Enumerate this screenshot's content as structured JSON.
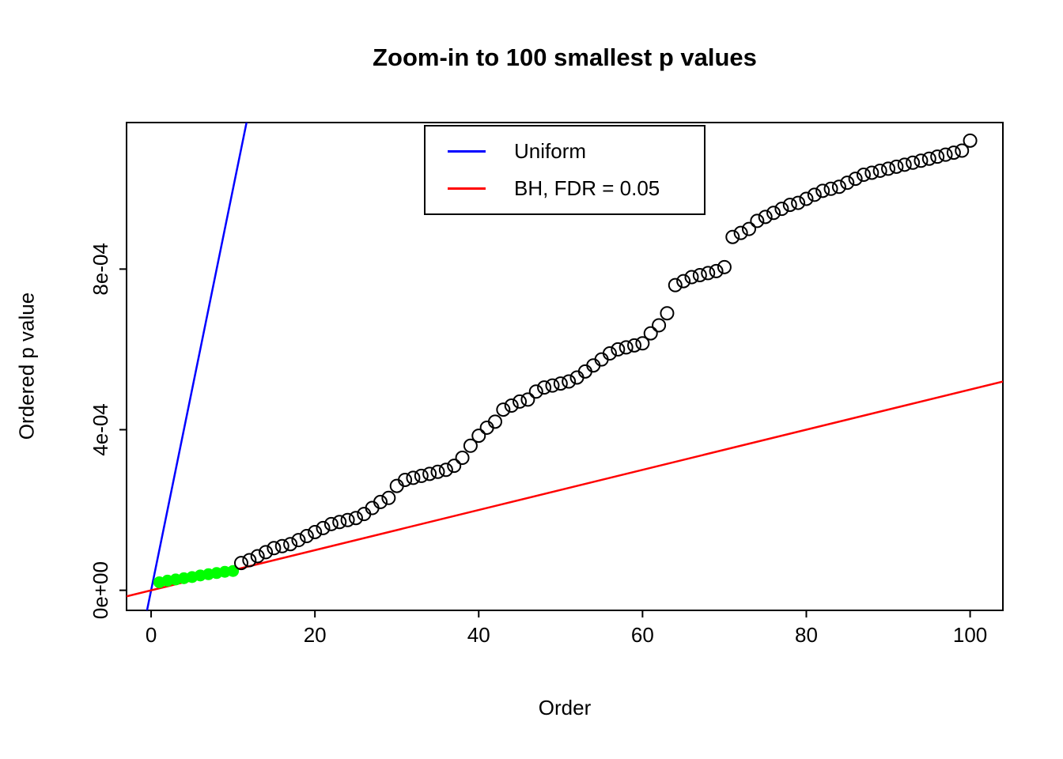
{
  "chart_data": {
    "type": "scatter",
    "title": "Zoom-in to 100 smallest p values",
    "xlabel": "Order",
    "ylabel": "Ordered p value",
    "x_range": [
      -3,
      104
    ],
    "y_range": [
      -5e-05,
      0.001165
    ],
    "x_ticks": [
      0,
      20,
      40,
      60,
      80,
      100
    ],
    "y_ticks": [
      {
        "value": 0.0,
        "label": "0e+00"
      },
      {
        "value": 0.0004,
        "label": "4e-04"
      },
      {
        "value": 0.0008,
        "label": "8e-04"
      }
    ],
    "orders": [
      1,
      2,
      3,
      4,
      5,
      6,
      7,
      8,
      9,
      10,
      11,
      12,
      13,
      14,
      15,
      16,
      17,
      18,
      19,
      20,
      21,
      22,
      23,
      24,
      25,
      26,
      27,
      28,
      29,
      30,
      31,
      32,
      33,
      34,
      35,
      36,
      37,
      38,
      39,
      40,
      41,
      42,
      43,
      44,
      45,
      46,
      47,
      48,
      49,
      50,
      51,
      52,
      53,
      54,
      55,
      56,
      57,
      58,
      59,
      60,
      61,
      62,
      63,
      64,
      65,
      66,
      67,
      68,
      69,
      70,
      71,
      72,
      73,
      74,
      75,
      76,
      77,
      78,
      79,
      80,
      81,
      82,
      83,
      84,
      85,
      86,
      87,
      88,
      89,
      90,
      91,
      92,
      93,
      94,
      95,
      96,
      97,
      98,
      99,
      100
    ],
    "p_values": [
      2e-05,
      2.4e-05,
      2.7e-05,
      3e-05,
      3.3e-05,
      3.7e-05,
      4e-05,
      4.3e-05,
      4.6e-05,
      4.8e-05,
      6.8e-05,
      7.5e-05,
      8.5e-05,
      9.5e-05,
      0.000105,
      0.00011,
      0.000115,
      0.000125,
      0.000135,
      0.000145,
      0.000155,
      0.000165,
      0.00017,
      0.000175,
      0.00018,
      0.00019,
      0.000205,
      0.00022,
      0.00023,
      0.00026,
      0.000275,
      0.00028,
      0.000285,
      0.00029,
      0.000295,
      0.0003,
      0.00031,
      0.00033,
      0.00036,
      0.000385,
      0.000405,
      0.00042,
      0.00045,
      0.00046,
      0.00047,
      0.000475,
      0.000495,
      0.000505,
      0.00051,
      0.000515,
      0.00052,
      0.00053,
      0.000545,
      0.00056,
      0.000575,
      0.00059,
      0.0006,
      0.000605,
      0.00061,
      0.000615,
      0.00064,
      0.00066,
      0.00069,
      0.00076,
      0.00077,
      0.00078,
      0.000785,
      0.00079,
      0.000795,
      0.000805,
      0.00088,
      0.00089,
      0.0009,
      0.00092,
      0.00093,
      0.00094,
      0.00095,
      0.00096,
      0.000965,
      0.000975,
      0.000985,
      0.000995,
      0.001,
      0.001005,
      0.001015,
      0.001025,
      0.001035,
      0.00104,
      0.001045,
      0.00105,
      0.001055,
      0.00106,
      0.001065,
      0.00107,
      0.001075,
      0.00108,
      0.001085,
      0.00109,
      0.001095,
      0.00112
    ],
    "significant_count": 10,
    "significant_color": "#00FF00",
    "point_color": "#000000",
    "reference_lines": [
      {
        "name": "Uniform",
        "slope": 0.0001,
        "intercept": 0,
        "color": "#0000FF"
      },
      {
        "name": "BH, FDR = 0.05",
        "slope": 5e-06,
        "intercept": 0,
        "color": "#FF0000"
      }
    ],
    "legend": {
      "position": "top-center",
      "items": [
        {
          "label": "Uniform",
          "color": "#0000FF"
        },
        {
          "label": "BH, FDR = 0.05",
          "color": "#FF0000"
        }
      ]
    }
  }
}
